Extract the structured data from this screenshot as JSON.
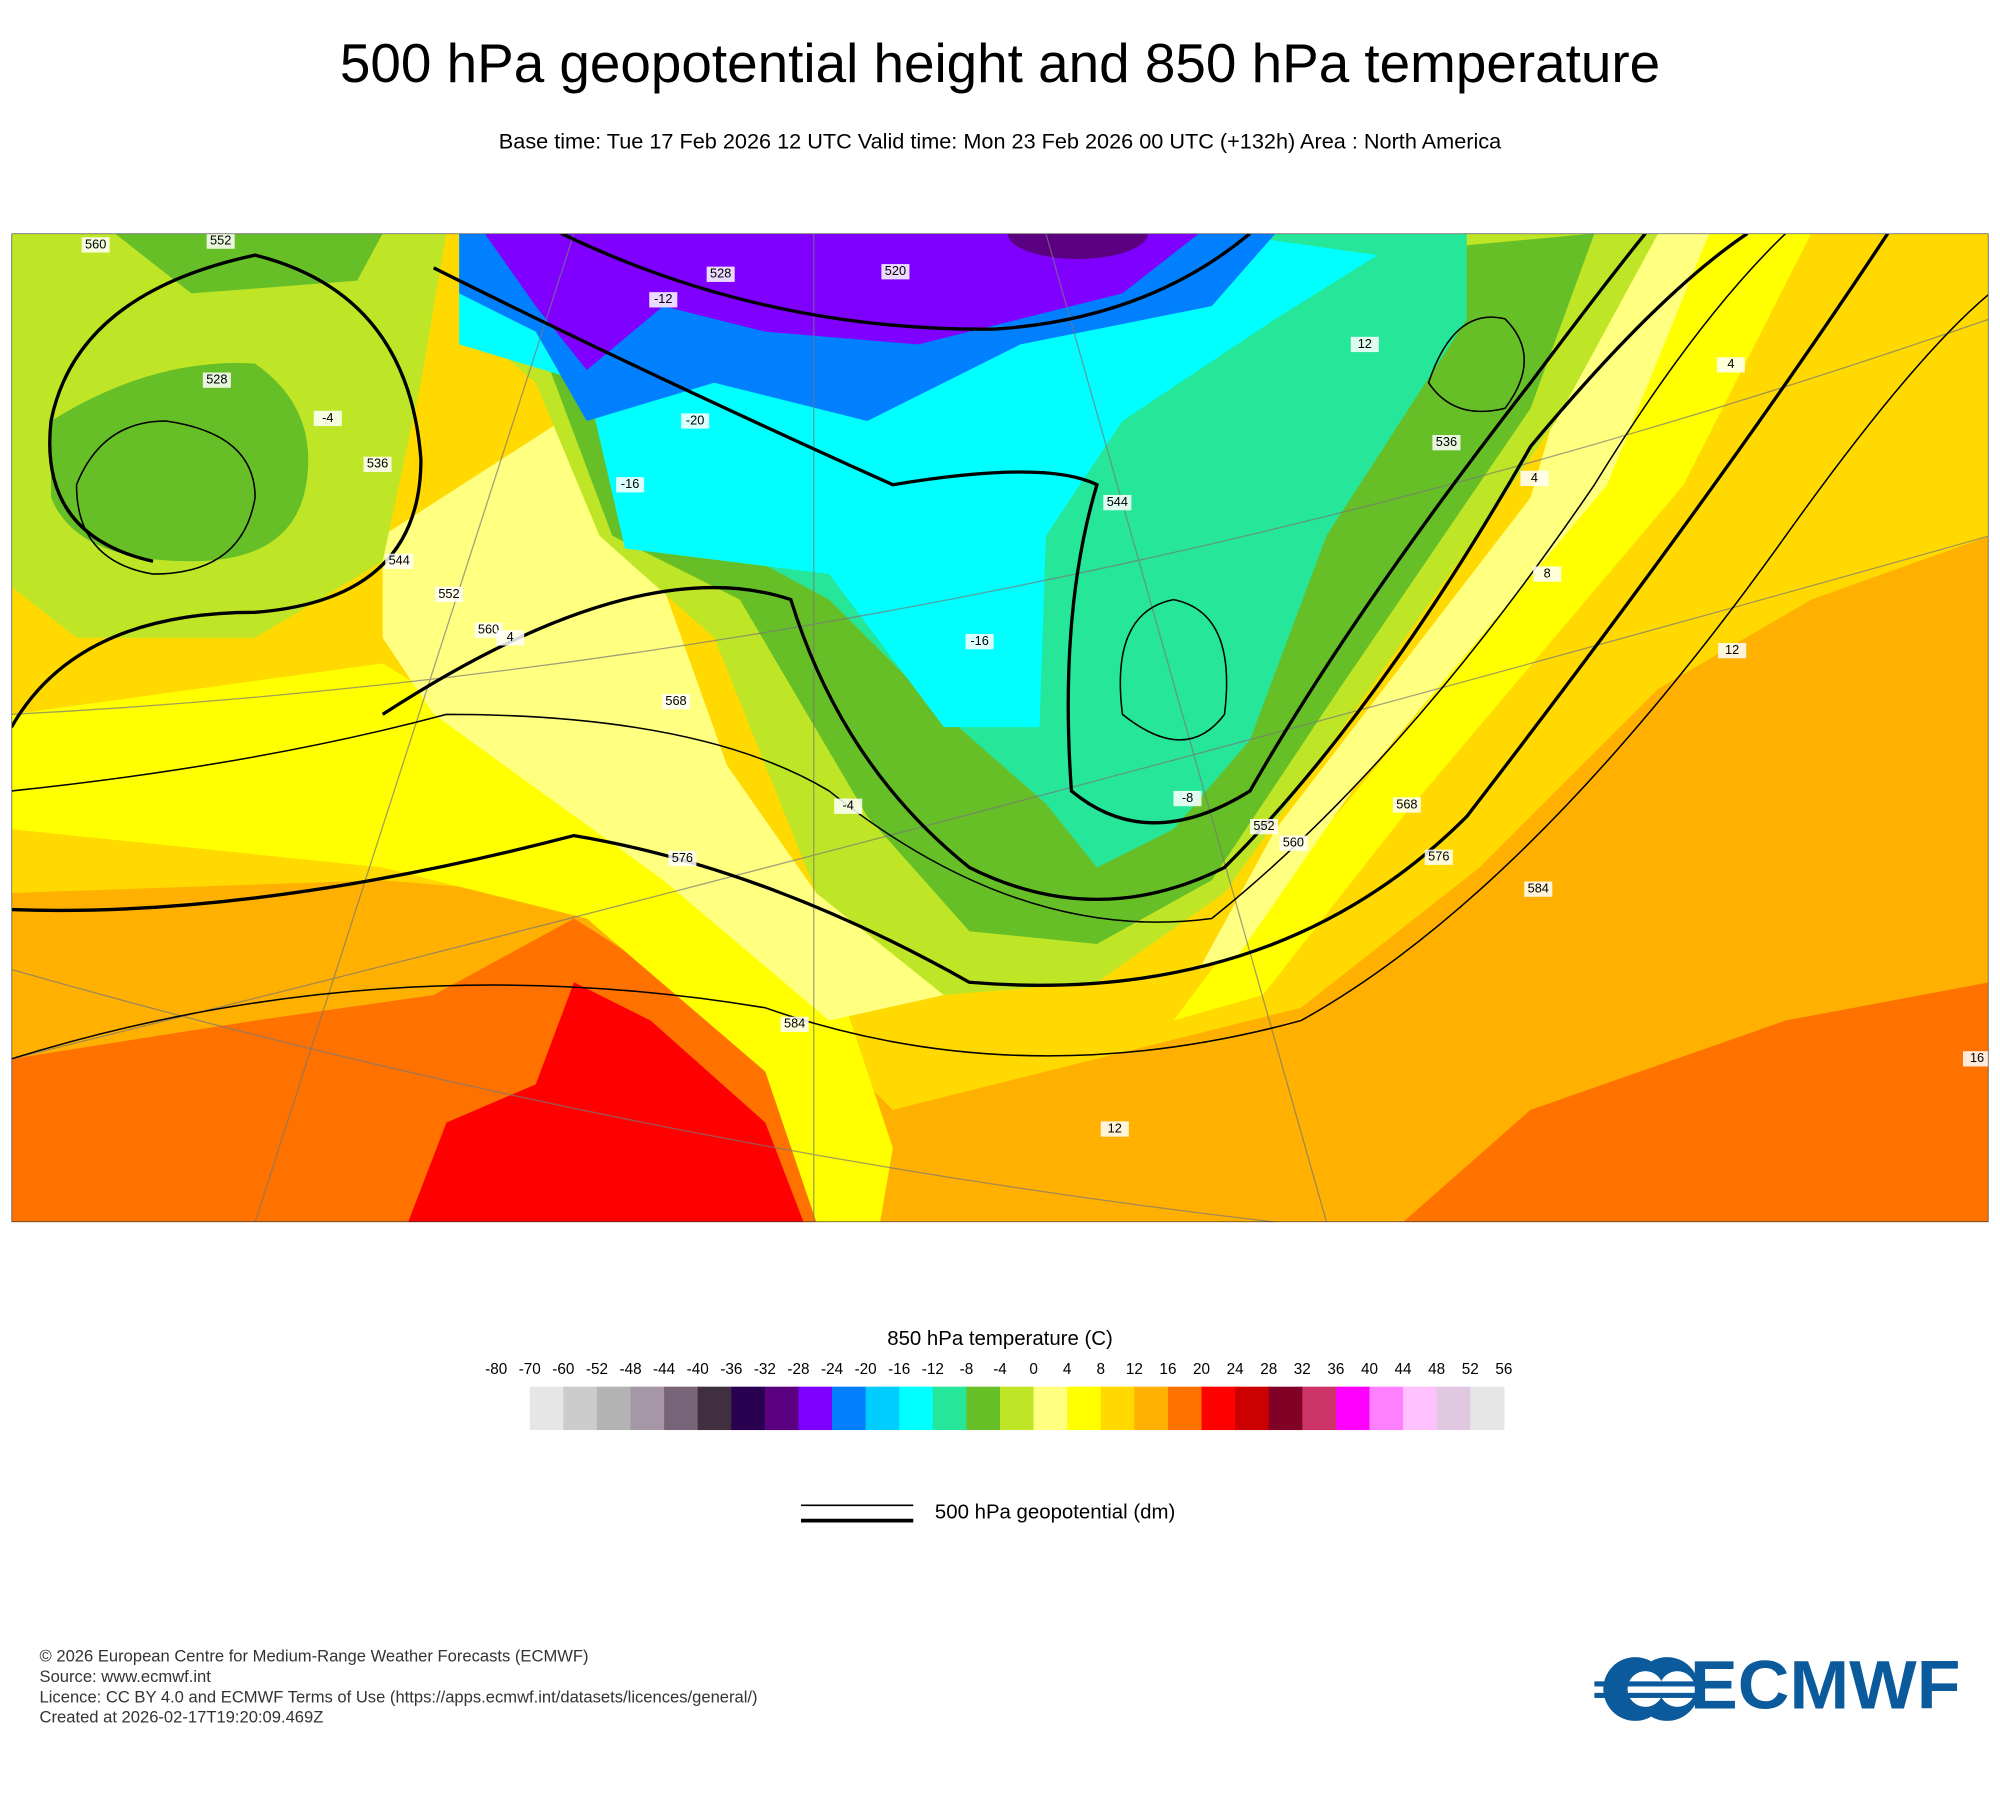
{
  "header": {
    "title": "500 hPa geopotential height and 850 hPa temperature",
    "subtitle": "Base time: Tue 17 Feb 2026 12 UTC Valid time: Mon 23 Feb 2026 00 UTC (+132h) Area : North America"
  },
  "map": {
    "contour_labels": [
      "560",
      "552",
      "528",
      "536",
      "544",
      "552",
      "560",
      "568",
      "576",
      "584",
      "520",
      "528",
      "544",
      "536",
      "552",
      "560",
      "568",
      "576",
      "584"
    ],
    "temperature_labels": [
      "-20",
      "-16",
      "-16",
      "-4",
      "-8",
      "-4",
      "4",
      "4",
      "8",
      "12",
      "12",
      "16",
      "12",
      "4",
      "-12"
    ]
  },
  "colorbar": {
    "title": "850 hPa temperature (C)",
    "ticks": [
      -80,
      -70,
      -60,
      -52,
      -48,
      -44,
      -40,
      -36,
      -32,
      -28,
      -24,
      -20,
      -16,
      -12,
      -8,
      -4,
      0,
      4,
      8,
      12,
      16,
      20,
      24,
      28,
      32,
      36,
      40,
      44,
      48,
      52,
      56
    ],
    "colors": [
      "#e6e6e6",
      "#cccccc",
      "#b3b3b3",
      "#a597a5",
      "#786478",
      "#3f2f3f",
      "#2a0050",
      "#5a0080",
      "#8000ff",
      "#0080ff",
      "#00ccff",
      "#00ffff",
      "#26e699",
      "#66bf26",
      "#bfe626",
      "#ffff80",
      "#ffff00",
      "#ffd900",
      "#ffb000",
      "#ff7200",
      "#ff0000",
      "#cc0000",
      "#800026",
      "#cc3366",
      "#ff00ff",
      "#ff80ff",
      "#ffc0ff",
      "#e0c8e0",
      "#e6e6e6"
    ]
  },
  "legend": {
    "label": "500 hPa geopotential (dm)"
  },
  "footer": {
    "lines": [
      "© 2026 European Centre for Medium-Range Weather Forecasts (ECMWF)",
      "Source: www.ecmwf.int",
      "Licence: CC BY 4.0 and ECMWF Terms of Use (https://apps.ecmwf.int/datasets/licences/general/)",
      "Created at 2026-02-17T19:20:09.469Z"
    ]
  },
  "logo": {
    "text": "ECMWF"
  }
}
